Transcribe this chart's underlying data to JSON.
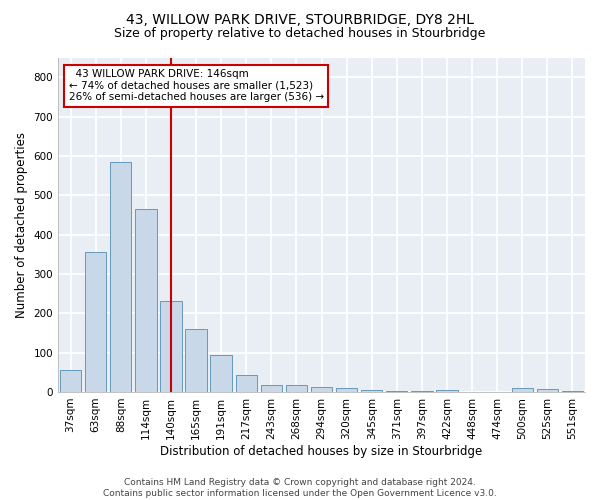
{
  "title": "43, WILLOW PARK DRIVE, STOURBRIDGE, DY8 2HL",
  "subtitle": "Size of property relative to detached houses in Stourbridge",
  "xlabel": "Distribution of detached houses by size in Stourbridge",
  "ylabel": "Number of detached properties",
  "categories": [
    "37sqm",
    "63sqm",
    "88sqm",
    "114sqm",
    "140sqm",
    "165sqm",
    "191sqm",
    "217sqm",
    "243sqm",
    "268sqm",
    "294sqm",
    "320sqm",
    "345sqm",
    "371sqm",
    "397sqm",
    "422sqm",
    "448sqm",
    "474sqm",
    "500sqm",
    "525sqm",
    "551sqm"
  ],
  "values": [
    55,
    355,
    585,
    465,
    230,
    160,
    95,
    42,
    18,
    17,
    13,
    10,
    4,
    3,
    2,
    5,
    1,
    0,
    9,
    7,
    2
  ],
  "bar_color": "#c8d8e8",
  "bar_edge_color": "#6699bb",
  "vline_x_data": 4.0,
  "vline_color": "#cc0000",
  "annotation_line1": "  43 WILLOW PARK DRIVE: 146sqm",
  "annotation_line2": "← 74% of detached houses are smaller (1,523)",
  "annotation_line3": "26% of semi-detached houses are larger (536) →",
  "annotation_box_color": "#ffffff",
  "annotation_box_edge": "#cc0000",
  "ylim": [
    0,
    850
  ],
  "yticks": [
    0,
    100,
    200,
    300,
    400,
    500,
    600,
    700,
    800
  ],
  "footer_line1": "Contains HM Land Registry data © Crown copyright and database right 2024.",
  "footer_line2": "Contains public sector information licensed under the Open Government Licence v3.0.",
  "background_color": "#ffffff",
  "plot_bg_color": "#e8eef4",
  "grid_color": "#ffffff",
  "title_fontsize": 10,
  "subtitle_fontsize": 9,
  "xlabel_fontsize": 8.5,
  "ylabel_fontsize": 8.5,
  "tick_fontsize": 7.5,
  "annotation_fontsize": 7.5,
  "footer_fontsize": 6.5
}
